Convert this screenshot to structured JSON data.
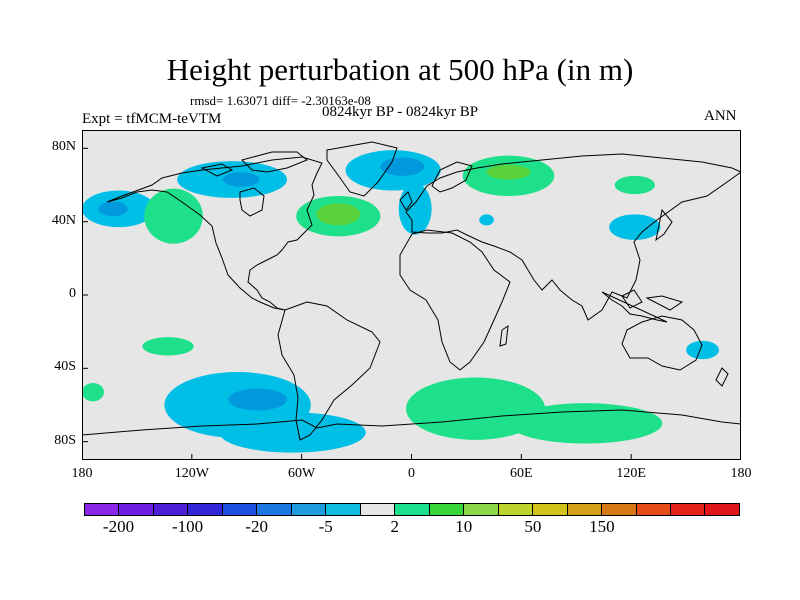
{
  "title": "Height perturbation at 500 hPa (in m)",
  "stats": "rmsd= 1.63071 diff= -2.30163e-08",
  "experiment": "Expt = tfMCM-teVTM",
  "period": "0824kyr BP - 0824kyr BP",
  "season": "ANN",
  "map": {
    "lat_ticks": [
      {
        "label": "80N",
        "lat": 80
      },
      {
        "label": "40N",
        "lat": 40
      },
      {
        "label": "0",
        "lat": 0
      },
      {
        "label": "40S",
        "lat": -40
      },
      {
        "label": "80S",
        "lat": -80
      }
    ],
    "lon_ticks": [
      {
        "label": "180",
        "lon": -180
      },
      {
        "label": "120W",
        "lon": -120
      },
      {
        "label": "60W",
        "lon": -60
      },
      {
        "label": "0",
        "lon": 0
      },
      {
        "label": "60E",
        "lon": 60
      },
      {
        "label": "120E",
        "lon": 120
      },
      {
        "label": "180",
        "lon": 180
      }
    ],
    "background_color": "#e6e6e6",
    "coast_color": "#000000",
    "anomalies": [
      {
        "lon": -160,
        "lat": 47,
        "rx": 20,
        "ry": 10,
        "level": "-20",
        "color": "#00bfe6"
      },
      {
        "lon": -163,
        "lat": 47,
        "rx": 8,
        "ry": 4,
        "level": "-5",
        "color": "#0099dd"
      },
      {
        "lon": -130,
        "lat": 43,
        "rx": 16,
        "ry": 15,
        "level": "2",
        "color": "#1ee08a"
      },
      {
        "lon": -98,
        "lat": 63,
        "rx": 30,
        "ry": 10,
        "level": "-20",
        "color": "#00bfe6"
      },
      {
        "lon": -93,
        "lat": 63,
        "rx": 10,
        "ry": 4,
        "level": "-5",
        "color": "#0099dd"
      },
      {
        "lon": -40,
        "lat": 43,
        "rx": 23,
        "ry": 11,
        "level": "2",
        "color": "#1ee08a"
      },
      {
        "lon": -40,
        "lat": 44,
        "rx": 12,
        "ry": 6,
        "level": "10",
        "color": "#58d13a"
      },
      {
        "lon": -10,
        "lat": 68,
        "rx": 26,
        "ry": 11,
        "level": "-20",
        "color": "#00bfe6"
      },
      {
        "lon": -5,
        "lat": 70,
        "rx": 12,
        "ry": 5,
        "level": "-5",
        "color": "#0099dd"
      },
      {
        "lon": 2,
        "lat": 47,
        "rx": 9,
        "ry": 14,
        "level": "-20",
        "color": "#00bfe6"
      },
      {
        "lon": 53,
        "lat": 65,
        "rx": 25,
        "ry": 11,
        "level": "2",
        "color": "#1ee08a"
      },
      {
        "lon": 53,
        "lat": 67,
        "rx": 12,
        "ry": 4,
        "level": "10",
        "color": "#58d13a"
      },
      {
        "lon": 41,
        "lat": 41,
        "rx": 4,
        "ry": 3,
        "level": "-20",
        "color": "#00bfe6"
      },
      {
        "lon": 122,
        "lat": 60,
        "rx": 11,
        "ry": 5,
        "level": "2",
        "color": "#1ee08a"
      },
      {
        "lon": 122,
        "lat": 37,
        "rx": 14,
        "ry": 7,
        "level": "-20",
        "color": "#00bfe6"
      },
      {
        "lon": 159,
        "lat": -30,
        "rx": 9,
        "ry": 5,
        "level": "-20",
        "color": "#00bfe6"
      },
      {
        "lon": -133,
        "lat": -28,
        "rx": 14,
        "ry": 5,
        "level": "2",
        "color": "#1ee08a"
      },
      {
        "lon": -174,
        "lat": -53,
        "rx": 6,
        "ry": 5,
        "level": "2",
        "color": "#1ee08a"
      },
      {
        "lon": -95,
        "lat": -60,
        "rx": 40,
        "ry": 18,
        "level": "-20",
        "color": "#00bfe6"
      },
      {
        "lon": -84,
        "lat": -57,
        "rx": 16,
        "ry": 6,
        "level": "-5",
        "color": "#0099dd"
      },
      {
        "lon": -65,
        "lat": -75,
        "rx": 40,
        "ry": 11,
        "level": "-20",
        "color": "#00bfe6"
      },
      {
        "lon": 35,
        "lat": -62,
        "rx": 38,
        "ry": 17,
        "level": "2",
        "color": "#1ee08a"
      },
      {
        "lon": 95,
        "lat": -70,
        "rx": 42,
        "ry": 11,
        "level": "2",
        "color": "#1ee08a"
      }
    ]
  },
  "colorbar": {
    "colors": [
      "#8b25e8",
      "#6e20e0",
      "#4f1fd6",
      "#3227d8",
      "#1f4fe0",
      "#1e78e3",
      "#1f9be0",
      "#12bde0",
      "#e6e6e6",
      "#1ce08c",
      "#38d638",
      "#8cd64a",
      "#bcd42b",
      "#d4c21c",
      "#d4a018",
      "#d47916",
      "#e54c17",
      "#e5231a",
      "#e0161a"
    ],
    "labels": [
      {
        "text": "-200",
        "boundary": 1
      },
      {
        "text": "-100",
        "boundary": 3
      },
      {
        "text": "-20",
        "boundary": 5
      },
      {
        "text": "-5",
        "boundary": 7
      },
      {
        "text": "2",
        "boundary": 9
      },
      {
        "text": "10",
        "boundary": 11
      },
      {
        "text": "50",
        "boundary": 13
      },
      {
        "text": "150",
        "boundary": 15
      }
    ]
  }
}
